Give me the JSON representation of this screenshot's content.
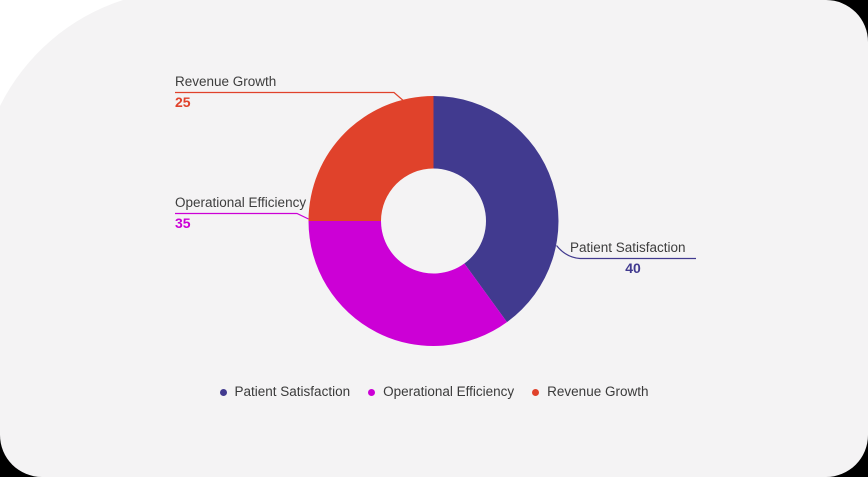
{
  "page": {
    "background": "#000000",
    "card_background": "#f4f3f4"
  },
  "chart_data": {
    "type": "pie",
    "subtype": "donut",
    "title": "",
    "categories": [
      "Patient Satisfaction",
      "Operational Efficiency",
      "Revenue Growth"
    ],
    "values": [
      40,
      35,
      25
    ],
    "colors": [
      "#413a8f",
      "#cc00d6",
      "#e0422b"
    ],
    "start_angle": "top",
    "direction": "clockwise",
    "inner_radius_ratio": 0.42,
    "legend_position": "bottom",
    "legend": [
      "Patient Satisfaction",
      "Operational Efficiency",
      "Revenue Growth"
    ],
    "callouts": [
      {
        "name": "Patient Satisfaction",
        "value": "40"
      },
      {
        "name": "Operational Efficiency",
        "value": "35"
      },
      {
        "name": "Revenue Growth",
        "value": "25"
      }
    ],
    "label_text_color": "#3d3d3d"
  }
}
